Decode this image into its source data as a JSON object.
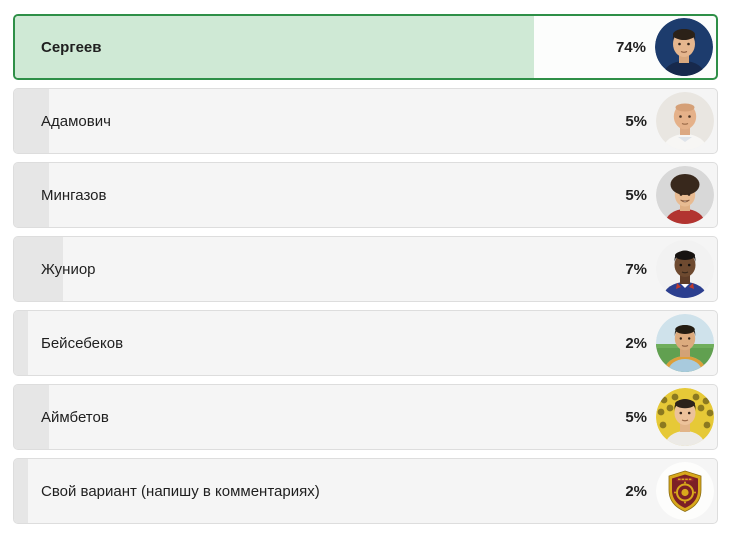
{
  "poll": {
    "options": [
      {
        "label": "Сергеев",
        "percent": 74,
        "percent_label": "74%",
        "avatar": "sergeev-portrait",
        "selected": true
      },
      {
        "label": "Адамович",
        "percent": 5,
        "percent_label": "5%",
        "avatar": "adamovich-portrait",
        "selected": false
      },
      {
        "label": "Мингазов",
        "percent": 5,
        "percent_label": "5%",
        "avatar": "mingazov-portrait",
        "selected": false
      },
      {
        "label": "Жуниор",
        "percent": 7,
        "percent_label": "7%",
        "avatar": "zhunior-portrait",
        "selected": false
      },
      {
        "label": "Бейсебеков",
        "percent": 2,
        "percent_label": "2%",
        "avatar": "beysebekov-portrait",
        "selected": false
      },
      {
        "label": "Аймбетов",
        "percent": 5,
        "percent_label": "5%",
        "avatar": "aymbetov-portrait",
        "selected": false
      },
      {
        "label": "Свой вариант (напишу в комментариях)",
        "percent": 2,
        "percent_label": "2%",
        "avatar": "club-crest",
        "selected": false
      }
    ],
    "colors": {
      "selected_border": "#2e8f47",
      "selected_fill": "#cfe9d5",
      "selected_bg": "#fcfdfc",
      "row_bg": "#f5f5f5",
      "row_fill": "#e6e6e6",
      "row_border": "#dddddd",
      "text": "#1f1f1f"
    }
  }
}
